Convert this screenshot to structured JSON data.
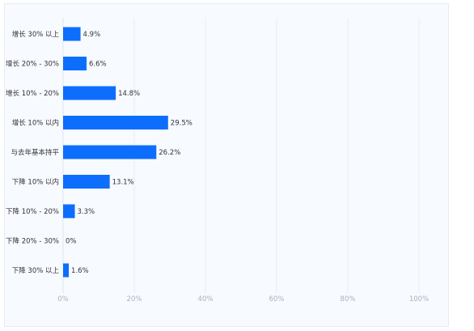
{
  "chart_data": {
    "type": "bar",
    "orientation": "horizontal",
    "categories": [
      "增长 30% 以上",
      "增长 20% - 30%",
      "增长 10% - 20%",
      "增长 10% 以内",
      "与去年基本持平",
      "下降 10% 以内",
      "下降 10% - 20%",
      "下降 20% - 30%",
      "下降 30% 以上"
    ],
    "values": [
      4.9,
      6.6,
      14.8,
      29.5,
      26.2,
      13.1,
      3.3,
      0,
      1.6
    ],
    "value_labels": [
      "4.9%",
      "6.6%",
      "14.8%",
      "29.5%",
      "26.2%",
      "13.1%",
      "3.3%",
      "0%",
      "1.6%"
    ],
    "xlim": [
      0,
      100
    ],
    "x_ticks": [
      0,
      20,
      40,
      60,
      80,
      100
    ],
    "x_tick_labels": [
      "0%",
      "20%",
      "40%",
      "60%",
      "80%",
      "100%"
    ],
    "bar_color": "#0d6efd",
    "grid": "vertical",
    "title": "",
    "xlabel": "",
    "ylabel": ""
  }
}
